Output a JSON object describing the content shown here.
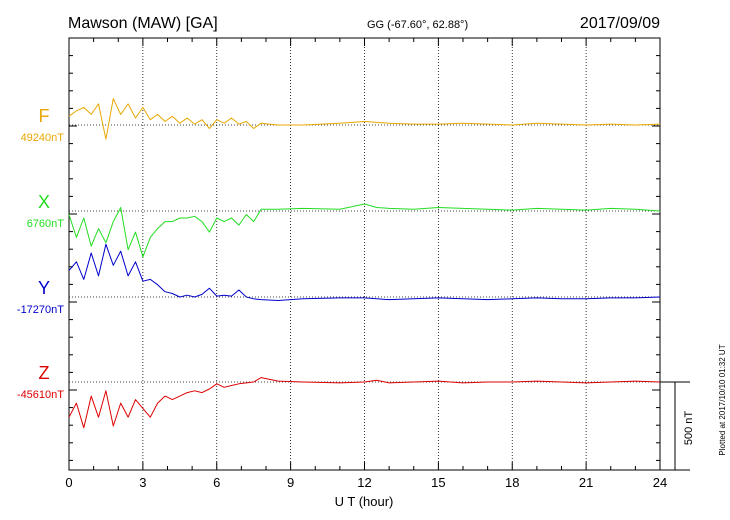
{
  "header": {
    "station": "Mawson (MAW)  [GA]",
    "coords": "GG (-67.60°,  62.88°)",
    "date": "2017/09/09"
  },
  "plotted_note": "Plotted at 2017/10/10 01:32 UT",
  "scale_label": "500 nT",
  "chart_data": {
    "type": "line",
    "title": "Mawson (MAW)  [GA]",
    "xlabel": "U T (hour)",
    "ylabel": "",
    "xlim": [
      0,
      24
    ],
    "x_ticks": [
      "0",
      "3",
      "6",
      "9",
      "12",
      "15",
      "18",
      "21",
      "24"
    ],
    "scale_bar_nT": 500,
    "grid": "vertical dotted lines every 3 hours",
    "legend": "component labels at left",
    "series": [
      {
        "name": "F",
        "baseline": "49240nT",
        "color": "#e8a800",
        "x": [
          0,
          0.3,
          0.6,
          0.9,
          1.2,
          1.5,
          1.8,
          2.1,
          2.4,
          2.7,
          3,
          3.3,
          3.6,
          3.9,
          4.2,
          4.5,
          4.8,
          5.1,
          5.4,
          5.7,
          6,
          6.3,
          6.6,
          6.9,
          7.2,
          7.5,
          7.8,
          8.5,
          9.5,
          11,
          12,
          12.5,
          13,
          14,
          15,
          16,
          17,
          18,
          19,
          20,
          21,
          22,
          23,
          24
        ],
        "values": [
          50,
          80,
          100,
          60,
          120,
          -80,
          150,
          60,
          120,
          40,
          100,
          30,
          60,
          20,
          50,
          10,
          40,
          5,
          30,
          -20,
          30,
          10,
          40,
          5,
          20,
          -20,
          10,
          0,
          0,
          10,
          20,
          15,
          10,
          5,
          5,
          10,
          5,
          0,
          10,
          5,
          0,
          5,
          0,
          5
        ]
      },
      {
        "name": "X",
        "baseline": "6760nT",
        "color": "#22dd22",
        "x": [
          0,
          0.3,
          0.6,
          0.9,
          1.2,
          1.5,
          1.8,
          2.1,
          2.4,
          2.7,
          3,
          3.3,
          3.6,
          3.9,
          4.2,
          4.5,
          4.8,
          5.1,
          5.4,
          5.7,
          6,
          6.3,
          6.6,
          6.9,
          7.2,
          7.5,
          7.8,
          8.5,
          9.5,
          11,
          12,
          12.5,
          13,
          14,
          15,
          16,
          17,
          18,
          19,
          20,
          21,
          22,
          23,
          24
        ],
        "values": [
          -20,
          -150,
          -40,
          -200,
          -100,
          -180,
          -60,
          20,
          -220,
          -120,
          -260,
          -150,
          -100,
          -60,
          -60,
          -40,
          -40,
          -30,
          -60,
          -120,
          -40,
          -60,
          -40,
          -80,
          -20,
          -60,
          10,
          10,
          15,
          10,
          40,
          20,
          15,
          10,
          20,
          15,
          10,
          5,
          15,
          10,
          5,
          15,
          10,
          0
        ]
      },
      {
        "name": "Y",
        "baseline": "-17270nT",
        "color": "#0000cc",
        "x": [
          0,
          0.3,
          0.6,
          0.9,
          1.2,
          1.5,
          1.8,
          2.1,
          2.4,
          2.7,
          3,
          3.3,
          3.6,
          3.9,
          4.2,
          4.5,
          4.8,
          5.1,
          5.4,
          5.7,
          6,
          6.3,
          6.6,
          6.9,
          7.2,
          7.5,
          7.8,
          8.5,
          9.5,
          11,
          12,
          12.5,
          13,
          14,
          15,
          16,
          17,
          18,
          19,
          20,
          21,
          22,
          23,
          24
        ],
        "values": [
          150,
          200,
          100,
          250,
          120,
          300,
          180,
          260,
          120,
          200,
          90,
          100,
          70,
          30,
          20,
          0,
          10,
          0,
          15,
          50,
          5,
          10,
          5,
          40,
          0,
          -10,
          -15,
          -20,
          -10,
          -5,
          -5,
          -10,
          -15,
          -10,
          -5,
          -10,
          -15,
          -10,
          -5,
          -10,
          -10,
          -5,
          -5,
          0
        ]
      },
      {
        "name": "Z",
        "baseline": "-45610nT",
        "color": "#dd0000",
        "x": [
          0,
          0.3,
          0.6,
          0.9,
          1.2,
          1.5,
          1.8,
          2.1,
          2.4,
          2.7,
          3,
          3.3,
          3.6,
          3.9,
          4.2,
          4.5,
          4.8,
          5.1,
          5.4,
          5.7,
          6,
          6.3,
          6.6,
          6.9,
          7.2,
          7.5,
          7.8,
          8.5,
          9.5,
          11,
          12,
          12.5,
          13,
          14,
          15,
          16,
          17,
          18,
          19,
          20,
          21,
          22,
          23,
          24
        ],
        "values": [
          -200,
          -120,
          -260,
          -80,
          -200,
          -50,
          -250,
          -120,
          -200,
          -100,
          -150,
          -200,
          -120,
          -80,
          -100,
          -80,
          -60,
          -50,
          -60,
          -40,
          -10,
          -30,
          -20,
          -10,
          -5,
          0,
          25,
          5,
          0,
          -5,
          0,
          10,
          -5,
          0,
          5,
          -5,
          0,
          0,
          5,
          0,
          -5,
          0,
          5,
          0
        ]
      }
    ]
  }
}
